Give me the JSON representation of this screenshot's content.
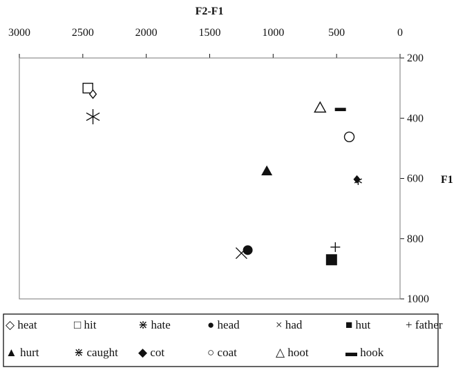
{
  "chart_data": {
    "type": "scatter",
    "xlabel": "F2-F1",
    "ylabel": "F1",
    "x_axis_position": "top",
    "x_axis_reversed": true,
    "y_axis_position": "right",
    "y_axis_reversed": true,
    "xlim": [
      0,
      3000
    ],
    "ylim": [
      200,
      1000
    ],
    "x_ticks": [
      3000,
      2500,
      2000,
      1500,
      1000,
      500,
      0
    ],
    "y_ticks": [
      200,
      400,
      600,
      800,
      1000
    ],
    "grid": false,
    "legend_position": "bottom",
    "series": [
      {
        "name": "heat",
        "marker": "diamond-open",
        "symbol": "◇",
        "x": 2420,
        "y": 320
      },
      {
        "name": "hit",
        "marker": "square-open",
        "symbol": "□",
        "x": 2460,
        "y": 300
      },
      {
        "name": "hate",
        "marker": "asterisk",
        "symbol": "⋇",
        "x": 2420,
        "y": 395
      },
      {
        "name": "head",
        "marker": "circle-filled",
        "symbol": "●",
        "x": 1200,
        "y": 838
      },
      {
        "name": "had",
        "marker": "x",
        "symbol": "×",
        "x": 1250,
        "y": 848
      },
      {
        "name": "hut",
        "marker": "square-filled",
        "symbol": "■",
        "x": 540,
        "y": 870
      },
      {
        "name": "father",
        "marker": "plus",
        "symbol": "+",
        "x": 510,
        "y": 828
      },
      {
        "name": "hurt",
        "marker": "triangle-filled",
        "symbol": "▲",
        "x": 1050,
        "y": 575
      },
      {
        "name": "caught",
        "marker": "asterisk",
        "symbol": "⋇",
        "x": 330,
        "y": 608
      },
      {
        "name": "cot",
        "marker": "diamond-filled",
        "symbol": "◆",
        "x": 340,
        "y": 603
      },
      {
        "name": "coat",
        "marker": "circle-open",
        "symbol": "○",
        "x": 400,
        "y": 462
      },
      {
        "name": "hoot",
        "marker": "triangle-open",
        "symbol": "△",
        "x": 630,
        "y": 365
      },
      {
        "name": "hook",
        "marker": "dash",
        "symbol": "▬",
        "x": 470,
        "y": 371
      }
    ]
  }
}
